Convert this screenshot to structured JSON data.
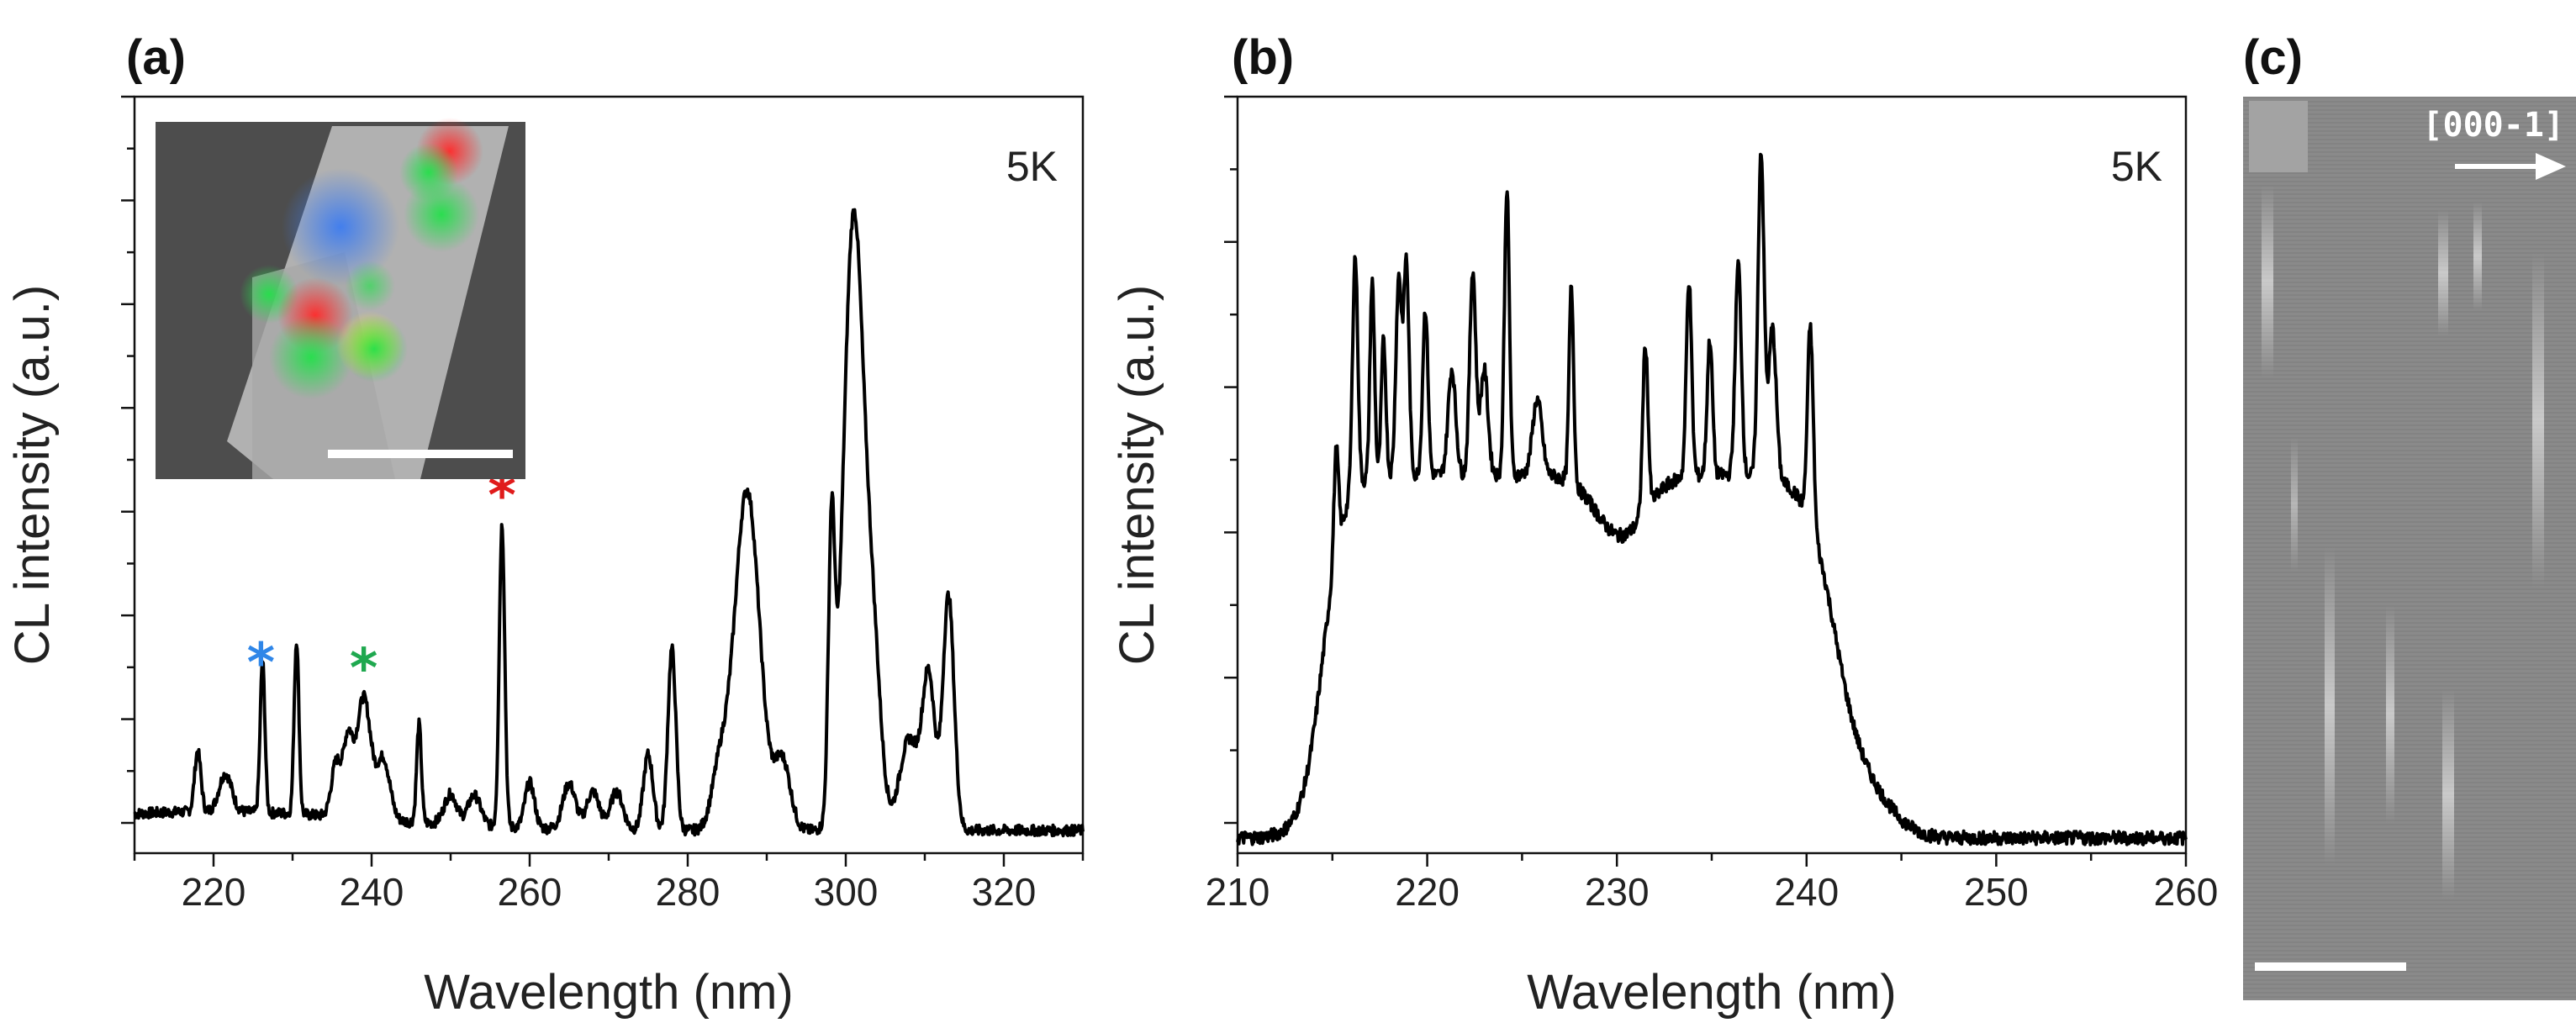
{
  "chart_data": [
    {
      "panel": "(a)",
      "type": "line",
      "xlabel": "Wavelength (nm)",
      "ylabel": "CL intensity (a.u.)",
      "xlim": [
        210,
        330
      ],
      "ylim": [
        0,
        100
      ],
      "xticks": [
        220,
        240,
        260,
        280,
        300,
        320
      ],
      "annotation": "5K",
      "markers": [
        {
          "symbol": "*",
          "x": 226,
          "color": "#2f86e8"
        },
        {
          "symbol": "*",
          "x": 239,
          "color": "#1fa84f"
        },
        {
          "symbol": "*",
          "x": 256.5,
          "color": "#e01b1b"
        }
      ],
      "peaks": [
        {
          "x": 218,
          "y": 8,
          "w": 0.4
        },
        {
          "x": 221.5,
          "y": 5,
          "w": 0.8
        },
        {
          "x": 226.2,
          "y": 20,
          "w": 0.3
        },
        {
          "x": 230.5,
          "y": 23,
          "w": 0.3
        },
        {
          "x": 235.5,
          "y": 7,
          "w": 0.6
        },
        {
          "x": 237,
          "y": 10,
          "w": 0.6
        },
        {
          "x": 239,
          "y": 16,
          "w": 0.9
        },
        {
          "x": 241.5,
          "y": 8,
          "w": 0.8
        },
        {
          "x": 246,
          "y": 13,
          "w": 0.3
        },
        {
          "x": 250,
          "y": 4,
          "w": 0.8
        },
        {
          "x": 253,
          "y": 4,
          "w": 0.8
        },
        {
          "x": 256.5,
          "y": 40,
          "w": 0.35
        },
        {
          "x": 260,
          "y": 6,
          "w": 0.6
        },
        {
          "x": 265,
          "y": 6,
          "w": 0.8
        },
        {
          "x": 268,
          "y": 5,
          "w": 0.8
        },
        {
          "x": 271,
          "y": 5,
          "w": 0.8
        },
        {
          "x": 275,
          "y": 10,
          "w": 0.6
        },
        {
          "x": 278,
          "y": 24,
          "w": 0.5
        },
        {
          "x": 284,
          "y": 7,
          "w": 1.0
        },
        {
          "x": 287.5,
          "y": 45,
          "w": 1.6
        },
        {
          "x": 292,
          "y": 9,
          "w": 1.0
        },
        {
          "x": 298.2,
          "y": 36,
          "w": 0.4
        },
        {
          "x": 301,
          "y": 81,
          "w": 1.3
        },
        {
          "x": 303.5,
          "y": 20,
          "w": 1.0
        },
        {
          "x": 308,
          "y": 12,
          "w": 1.2
        },
        {
          "x": 310.5,
          "y": 20,
          "w": 0.8
        },
        {
          "x": 313,
          "y": 31,
          "w": 0.7
        }
      ],
      "baseline": 3
    },
    {
      "panel": "(b)",
      "type": "line",
      "xlabel": "Wavelength (nm)",
      "ylabel": "CL intensity (a.u.)",
      "xlim": [
        210,
        260
      ],
      "ylim": [
        0,
        100
      ],
      "xticks": [
        210,
        220,
        230,
        240,
        250,
        260
      ],
      "annotation": "5K",
      "envelope": {
        "center": 228,
        "rise_edge": 214.5,
        "fall_edge": 241.5,
        "level": 48,
        "dip_center": 230.2,
        "dip_depth": 8
      },
      "peaks": [
        {
          "x": 215.2,
          "y": 14,
          "w": 0.12
        },
        {
          "x": 216.2,
          "y": 31,
          "w": 0.14
        },
        {
          "x": 217.1,
          "y": 26,
          "w": 0.12
        },
        {
          "x": 217.7,
          "y": 18,
          "w": 0.12
        },
        {
          "x": 218.5,
          "y": 26,
          "w": 0.15
        },
        {
          "x": 218.9,
          "y": 28,
          "w": 0.14
        },
        {
          "x": 219.9,
          "y": 22,
          "w": 0.14
        },
        {
          "x": 221.3,
          "y": 14,
          "w": 0.2
        },
        {
          "x": 222.4,
          "y": 27,
          "w": 0.16
        },
        {
          "x": 223.0,
          "y": 14,
          "w": 0.2
        },
        {
          "x": 224.2,
          "y": 38,
          "w": 0.13
        },
        {
          "x": 225.8,
          "y": 10,
          "w": 0.25
        },
        {
          "x": 227.6,
          "y": 26,
          "w": 0.12
        },
        {
          "x": 231.5,
          "y": 22,
          "w": 0.14
        },
        {
          "x": 233.8,
          "y": 26,
          "w": 0.14
        },
        {
          "x": 234.9,
          "y": 18,
          "w": 0.14
        },
        {
          "x": 236.4,
          "y": 28,
          "w": 0.16
        },
        {
          "x": 237.6,
          "y": 43,
          "w": 0.16
        },
        {
          "x": 238.2,
          "y": 20,
          "w": 0.2
        },
        {
          "x": 240.2,
          "y": 26,
          "w": 0.15
        }
      ]
    }
  ],
  "panels": {
    "a": {
      "label": "(a)",
      "xlabel": "Wavelength (nm)",
      "ylabel": "CL intensity (a.u.)",
      "temp": "5K",
      "xticks": [
        "220",
        "240",
        "260",
        "280",
        "300",
        "320"
      ],
      "markers": [
        "*",
        "*",
        "*"
      ]
    },
    "b": {
      "label": "(b)",
      "xlabel": "Wavelength (nm)",
      "ylabel": "CL intensity (a.u.)",
      "temp": "5K",
      "xticks": [
        "210",
        "220",
        "230",
        "240",
        "250",
        "260"
      ]
    },
    "c": {
      "label": "(c)",
      "orientation": "[000-1]"
    }
  },
  "colors": {
    "blue_star": "#2f86e8",
    "green_star": "#1fa84f",
    "red_star": "#e01b1b",
    "line": "#000000"
  }
}
